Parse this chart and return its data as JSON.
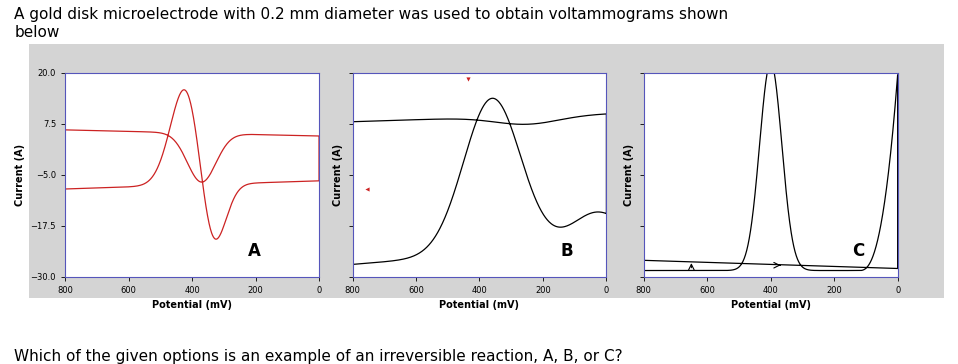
{
  "title": "A gold disk microelectrode with 0.2 mm diameter was used to obtain voltammograms shown\nbelow",
  "question": "Which of the given options is an example of an irreversible reaction, A, B, or C?",
  "panel_bg": "#d4d4d4",
  "plot_bg": "white",
  "spine_color": "#5555bb",
  "ylim": [
    -30.0,
    20.0
  ],
  "xlim": [
    800.0,
    0.0
  ],
  "yticks": [
    -30.0,
    -17.5,
    -5.0,
    7.5,
    20.0
  ],
  "xticks": [
    800.0,
    600.0,
    400.0,
    200.0,
    0.0
  ],
  "ylabel": "Current (A)",
  "xlabel": "Potential (mV)",
  "labels": [
    "A",
    "B",
    "C"
  ],
  "color_A": "#cc2222",
  "color_BC": "black",
  "title_fontsize": 11,
  "tick_fontsize": 6,
  "axlabel_fontsize": 7,
  "sublabel_fontsize": 12
}
